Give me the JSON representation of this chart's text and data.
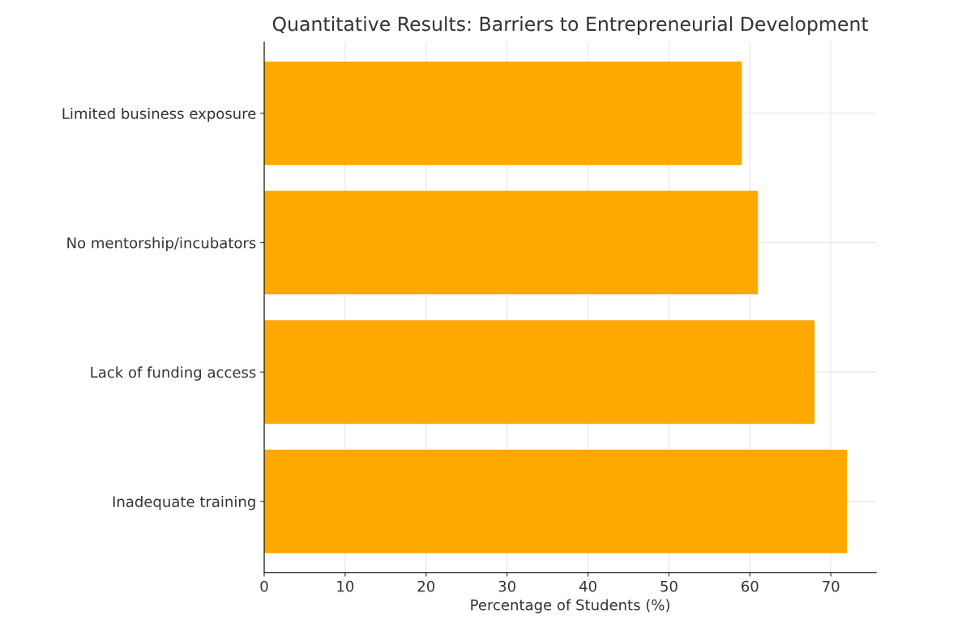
{
  "chart_data": {
    "type": "bar",
    "orientation": "horizontal",
    "title": "Quantitative Results: Barriers to Entrepreneurial Development",
    "xlabel": "Percentage of Students (%)",
    "categories": [
      "Limited business exposure",
      "No mentorship/incubators",
      "Lack of funding access",
      "Inadequate training"
    ],
    "values": [
      59,
      61,
      68,
      72
    ],
    "color": "#ffa800",
    "xlim": [
      0,
      75.6
    ],
    "xticks": [
      0,
      10,
      20,
      30,
      40,
      50,
      60,
      70
    ],
    "grid": true
  }
}
